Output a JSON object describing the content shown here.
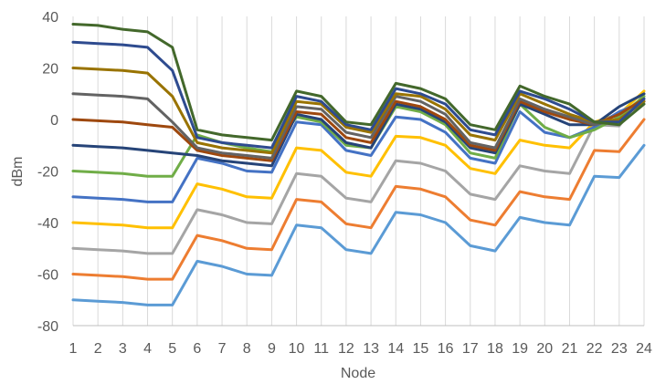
{
  "chart_data": {
    "type": "line",
    "title": "",
    "xlabel": "Node",
    "ylabel": "dBm",
    "ylim": [
      -80,
      40
    ],
    "yticks": [
      -80,
      -60,
      -40,
      -20,
      0,
      20,
      40
    ],
    "grid": "vertical",
    "legend": "none",
    "x": [
      1,
      2,
      3,
      4,
      5,
      6,
      7,
      8,
      9,
      10,
      11,
      12,
      13,
      14,
      15,
      16,
      17,
      18,
      19,
      20,
      21,
      22,
      23,
      24
    ],
    "series": [
      {
        "color": "#5b9bd5",
        "values": [
          -70,
          -70.5,
          -71,
          -72,
          -72,
          -55,
          -57,
          -60,
          -60.5,
          -41,
          -42,
          -50.5,
          -52,
          -36,
          -37,
          -40,
          -49,
          -51,
          -38,
          -40,
          -41,
          -22,
          -22.5,
          -10
        ]
      },
      {
        "color": "#ed7d31",
        "values": [
          -60,
          -60.5,
          -61,
          -62,
          -62,
          -45,
          -47,
          -50,
          -50.5,
          -31,
          -32,
          -40.5,
          -42,
          -26,
          -27,
          -30,
          -39,
          -41,
          -28,
          -30,
          -31,
          -12,
          -12.5,
          0
        ]
      },
      {
        "color": "#a5a5a5",
        "values": [
          -50,
          -50.5,
          -51,
          -52,
          -52,
          -35,
          -37,
          -40,
          -40.5,
          -21,
          -22,
          -30.5,
          -32,
          -16,
          -17,
          -20,
          -29,
          -31,
          -18,
          -20,
          -21,
          -2,
          -2.5,
          10
        ]
      },
      {
        "color": "#ffc000",
        "values": [
          -40,
          -40.5,
          -41,
          -42,
          -42,
          -25,
          -27,
          -30,
          -30.5,
          -11,
          -12,
          -20.5,
          -22,
          -6.5,
          -7,
          -10,
          -19,
          -21,
          -8,
          -10,
          -11,
          -1,
          2,
          11
        ]
      },
      {
        "color": "#4472c4",
        "values": [
          -30,
          -30.5,
          -31,
          -32,
          -32,
          -15,
          -17,
          -20,
          -20.5,
          -1,
          -2,
          -12,
          -14,
          1,
          0,
          -5,
          -15,
          -17,
          3,
          -5,
          -7,
          -3,
          3,
          7
        ]
      },
      {
        "color": "#70ad47",
        "values": [
          -20,
          -20.5,
          -21,
          -22,
          -22,
          -6,
          -9,
          -11,
          -12.5,
          1,
          -1,
          -10,
          -11,
          5,
          3,
          -2,
          -13,
          -15,
          6,
          -3,
          -7,
          -4,
          1,
          9
        ]
      },
      {
        "color": "#264478",
        "values": [
          -10,
          -10.5,
          -11,
          -12,
          -13,
          -14,
          -16,
          -17,
          -18,
          2,
          0,
          -9,
          -11,
          6,
          4,
          -1,
          -11,
          -13,
          6,
          2,
          -2,
          -2,
          5,
          10
        ]
      },
      {
        "color": "#9e480e",
        "values": [
          0,
          -0.5,
          -1,
          -2,
          -3,
          -12,
          -14,
          -15,
          -16,
          3,
          2,
          -7,
          -9,
          7,
          5,
          0,
          -10,
          -12,
          7,
          3,
          0,
          -2,
          2,
          8
        ]
      },
      {
        "color": "#636363",
        "values": [
          10,
          9.5,
          9,
          8,
          -1,
          -11,
          -13,
          -14,
          -15,
          5,
          4,
          -5,
          -7,
          9,
          7,
          2,
          -9,
          -11,
          8,
          4,
          1,
          -2,
          0,
          7
        ]
      },
      {
        "color": "#997300",
        "values": [
          20,
          19.5,
          19,
          18,
          9,
          -9,
          -11,
          -12,
          -13,
          7,
          6,
          -3,
          -5,
          10,
          9,
          4,
          -6,
          -8,
          10,
          6,
          2,
          -1,
          0,
          7
        ]
      },
      {
        "color": "#2e4b8f",
        "values": [
          30,
          29.5,
          29,
          28,
          19,
          -7,
          -9,
          -10,
          -11,
          9,
          7,
          -2,
          -4,
          12,
          10,
          6,
          -4,
          -6,
          11,
          8,
          4,
          -1,
          -1,
          8
        ]
      },
      {
        "color": "#43682b",
        "values": [
          37,
          36.5,
          35,
          34,
          28,
          -4,
          -6,
          -7,
          -8,
          11,
          9,
          -1,
          -2,
          14,
          12,
          8,
          -2,
          -4,
          13,
          9,
          6,
          -1,
          -2,
          6
        ]
      }
    ]
  }
}
